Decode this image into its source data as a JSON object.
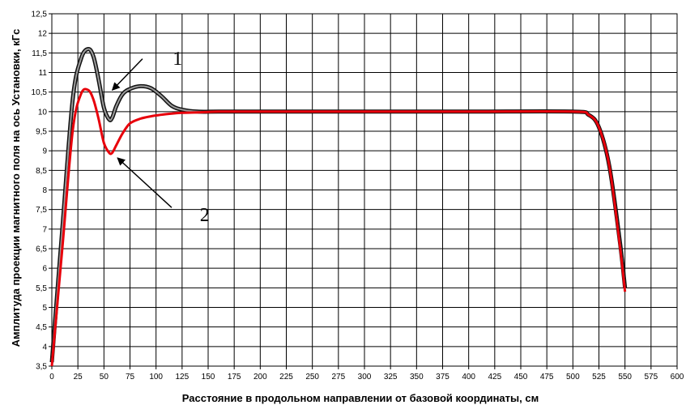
{
  "chart_data": {
    "type": "line",
    "title": "",
    "xlabel": "Расстояние в продольном направлении от базовой координаты, см",
    "ylabel": "Амплитуда проекции магнитного поля на ось Установки, кГс",
    "xlim": [
      0,
      600
    ],
    "ylim": [
      3.5,
      12.5
    ],
    "grid": true,
    "legend": "none",
    "x_ticks": [
      0,
      25,
      50,
      75,
      100,
      125,
      150,
      175,
      200,
      225,
      250,
      275,
      300,
      325,
      350,
      375,
      400,
      425,
      450,
      475,
      500,
      525,
      550,
      575,
      600
    ],
    "x_tick_labels": [
      "0",
      "25",
      "50",
      "75",
      "100",
      "125",
      "150",
      "175",
      "200",
      "225",
      "250",
      "275",
      "300",
      "325",
      "350",
      "375",
      "400",
      "425",
      "450",
      "475",
      "500",
      "525",
      "550",
      "575",
      "600"
    ],
    "y_ticks": [
      3.5,
      4,
      4.5,
      5,
      5.5,
      6,
      6.5,
      7,
      7.5,
      8,
      8.5,
      9,
      9.5,
      10,
      10.5,
      11,
      11.5,
      12,
      12.5
    ],
    "y_tick_labels": [
      "3,5",
      "4",
      "4,5",
      "5",
      "5,5",
      "6",
      "6,5",
      "7",
      "7,5",
      "8",
      "8,5",
      "9",
      "9,5",
      "10",
      "10,5",
      "11",
      "11,5",
      "12",
      "12,5"
    ],
    "series": [
      {
        "color": "#4d4d4d",
        "x": [
          0,
          10,
          20,
          28,
          35,
          40,
          45,
          50,
          55,
          58,
          62,
          68,
          75,
          85,
          95,
          105,
          115,
          125,
          140,
          160,
          200,
          300,
          400,
          500,
          515,
          525,
          535,
          545,
          550
        ],
        "y": [
          3.6,
          7.0,
          10.3,
          11.35,
          11.6,
          11.4,
          10.8,
          10.1,
          9.8,
          9.85,
          10.15,
          10.45,
          10.58,
          10.65,
          10.6,
          10.4,
          10.15,
          10.05,
          10.0,
          10.0,
          10.0,
          10.0,
          10.0,
          10.0,
          9.92,
          9.6,
          8.6,
          6.7,
          5.5
        ]
      },
      {
        "color": "#e8000b",
        "x": [
          0,
          10,
          20,
          28,
          35,
          40,
          45,
          50,
          55,
          58,
          62,
          68,
          75,
          85,
          95,
          105,
          115,
          125,
          140,
          160,
          200,
          300,
          400,
          500,
          515,
          525,
          535,
          545,
          550
        ],
        "y": [
          3.5,
          6.5,
          9.5,
          10.45,
          10.55,
          10.3,
          9.8,
          9.2,
          8.95,
          8.95,
          9.15,
          9.45,
          9.7,
          9.82,
          9.88,
          9.92,
          9.95,
          9.97,
          9.98,
          10.0,
          10.0,
          10.0,
          10.0,
          10.0,
          9.92,
          9.6,
          8.6,
          6.6,
          5.4
        ]
      }
    ],
    "annotations": [
      {
        "text": "1"
      },
      {
        "text": "2"
      }
    ]
  }
}
